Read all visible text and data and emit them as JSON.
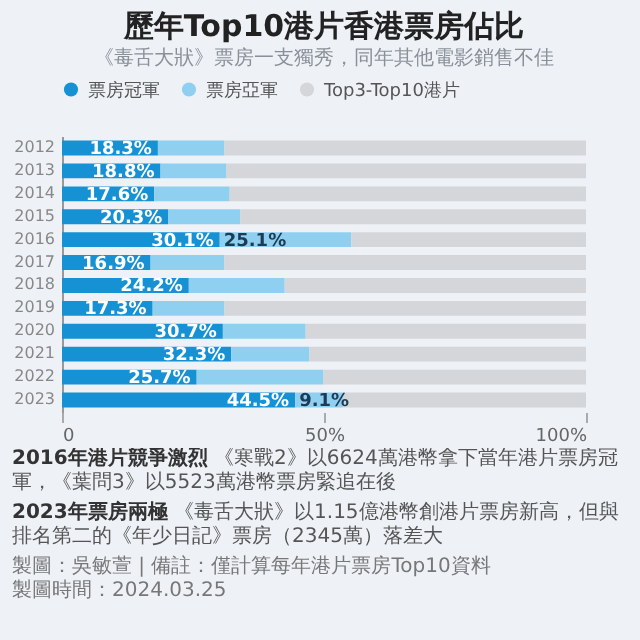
{
  "chart_data": {
    "type": "bar",
    "orientation": "horizontal",
    "stacked": true,
    "title": "歷年Top10港片香港票房佔比",
    "subtitle": "《毒舌大狀》票房一支獨秀，同年其他電影銷售不佳",
    "categories": [
      "2012",
      "2013",
      "2014",
      "2015",
      "2016",
      "2017",
      "2018",
      "2019",
      "2020",
      "2021",
      "2022",
      "2023"
    ],
    "series": [
      {
        "name": "票房冠軍",
        "color": "#1591d4",
        "values": [
          18.3,
          18.8,
          17.6,
          20.3,
          30.1,
          16.9,
          24.2,
          17.3,
          30.7,
          32.3,
          25.7,
          44.5
        ],
        "value_labels": [
          "18.3%",
          "18.8%",
          "17.6%",
          "20.3%",
          "30.1%",
          "16.9%",
          "24.2%",
          "17.3%",
          "30.7%",
          "32.3%",
          "25.7%",
          "44.5%"
        ]
      },
      {
        "name": "票房亞軍",
        "color": "#8fd0f0",
        "values": [
          12.7,
          12.5,
          14.4,
          13.7,
          25.1,
          14.1,
          18.3,
          13.7,
          15.8,
          14.9,
          24.2,
          9.1
        ],
        "value_labels": [
          null,
          null,
          null,
          null,
          "25.1%",
          null,
          null,
          null,
          null,
          null,
          null,
          "9.1%"
        ]
      },
      {
        "name": "Top3-Top10港片",
        "color": "#d4d6da",
        "values": [
          69.0,
          68.7,
          68.0,
          66.0,
          44.8,
          69.0,
          57.5,
          69.0,
          53.5,
          52.8,
          50.1,
          46.4
        ]
      }
    ],
    "xlim": [
      0,
      100
    ],
    "xticks": [
      {
        "value": 0,
        "label": "0"
      },
      {
        "value": 50,
        "label": "50%"
      },
      {
        "value": 100,
        "label": "100%"
      }
    ],
    "legend": "top",
    "annotations": [
      "2016年港片競爭激烈",
      "《寒戰2》以6624萬港幣拿下當年港片票房冠軍，《葉問3》以5523萬港幣票房緊追在後",
      "2023年票房兩極",
      "《毒舌大狀》以1.15億港幣創港片票房新高，但與排名第二的《年少日記》票房（2345萬）落差大",
      "製圖：吳敏萱 | 備註：僅計算每年港片票房Top10資料",
      "製圖時間：2024.03.25"
    ]
  }
}
